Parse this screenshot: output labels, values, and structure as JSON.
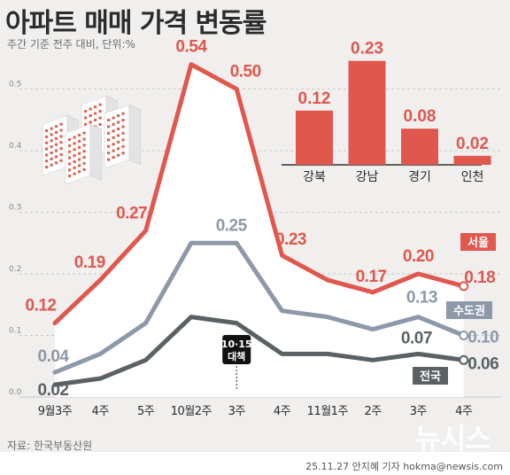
{
  "header": {
    "title": "아파트 매매 가격 변동률",
    "subtitle": "주간 기준 전주 대비, 단위:%"
  },
  "footer": {
    "source": "자료: 한국부동산원",
    "credit": "25.11.27 안지혜 기자 hokma@newsis.com",
    "watermark": "뉴시스"
  },
  "colors": {
    "seoul": "#e0574e",
    "capital": "#8d98a9",
    "nation": "#5a6164",
    "grid": "#c9c9c9",
    "area": "#ffffff"
  },
  "chart_data": [
    {
      "type": "line",
      "categories": [
        "9월3주",
        "4주",
        "5주",
        "10월2주",
        "3주",
        "4주",
        "11월1주",
        "2주",
        "3주",
        "4주"
      ],
      "ylim": [
        0,
        0.6
      ],
      "yticks": [
        "0.0",
        "0.1",
        "0.2",
        "0.3",
        "0.4",
        "0.5"
      ],
      "grid": true,
      "series": [
        {
          "name": "서울",
          "values": [
            0.12,
            0.19,
            0.27,
            0.54,
            0.5,
            0.23,
            0.19,
            0.17,
            0.2,
            0.18
          ],
          "labels": [
            "0.12",
            "0.19",
            "0.27",
            "0.54",
            "0.50",
            "0.23",
            "",
            "0.17",
            "0.20",
            "0.18"
          ]
        },
        {
          "name": "수도권",
          "values": [
            0.04,
            0.07,
            0.12,
            0.25,
            0.25,
            0.14,
            0.13,
            0.11,
            0.13,
            0.1
          ],
          "labels": [
            "0.04",
            "",
            "",
            "",
            "0.25",
            "",
            "",
            "",
            "0.13",
            "0.10"
          ]
        },
        {
          "name": "전국",
          "values": [
            0.02,
            0.03,
            0.06,
            0.13,
            0.12,
            0.07,
            0.07,
            0.06,
            0.07,
            0.06
          ],
          "labels": [
            "0.02",
            "",
            "",
            "",
            "",
            "",
            "",
            "",
            "0.07",
            "0.06"
          ]
        }
      ],
      "annotation": {
        "category_index": 4,
        "lines": [
          "10·15",
          "대책"
        ]
      }
    },
    {
      "type": "bar",
      "categories": [
        "강북",
        "강남",
        "경기",
        "인천"
      ],
      "values": [
        0.12,
        0.23,
        0.08,
        0.02
      ],
      "labels": [
        "0.12",
        "0.23",
        "0.08",
        "0.02"
      ]
    }
  ]
}
